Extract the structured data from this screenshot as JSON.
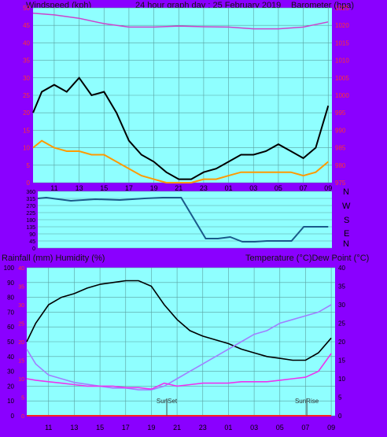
{
  "header": {
    "left": "Windspeed (kph)",
    "center": "24 hour graph day : 25 February 2019",
    "right": "Barometer (hpa)"
  },
  "dir_labels": [
    "N",
    "W",
    "S",
    "E",
    "N"
  ],
  "lower_header": {
    "left": "Rainfall (mm)  Humidity (%)",
    "right": "Temperature (°C)Dew Point (°C)"
  },
  "markers": {
    "sunset": "SunSet",
    "sunrise": "SunRise"
  },
  "colors": {
    "background": "#8a00ff",
    "plot": "#8fffff",
    "grid": "#5aa0a0",
    "wind_gust": "#000000",
    "wind_avg": "#ff9a00",
    "wind_dir": "#1a5a8a",
    "barometer": "#cc44cc",
    "temperature": "#000000",
    "dew_point": "#a080ff",
    "humidity": "#ee33ee",
    "rainfall": "#ff2222",
    "axis_red": "#ff3333",
    "axis_black": "#000000"
  },
  "chart_data": [
    {
      "type": "line",
      "name": "wind-baro",
      "x_ticks": [
        "11",
        "13",
        "15",
        "17",
        "19",
        "21",
        "23",
        "01",
        "03",
        "05",
        "07",
        "09"
      ],
      "ylim_left": [
        0,
        50
      ],
      "y_ticks_left": [
        "0",
        "5",
        "10",
        "15",
        "20",
        "25",
        "30",
        "35",
        "40",
        "45",
        "50"
      ],
      "ylim_right": [
        975,
        1025
      ],
      "y_ticks_right": [
        "975",
        "980",
        "985",
        "990",
        "995",
        "1000",
        "1005",
        "1010",
        "1015",
        "1020",
        "1025"
      ],
      "series": [
        {
          "key": "barometer",
          "axis": "right",
          "x": [
            9.3,
            11,
            13,
            15,
            17,
            19,
            21,
            23,
            1,
            3,
            5,
            7,
            9
          ],
          "values": [
            1023.5,
            1023,
            1022,
            1020.5,
            1019.5,
            1019.5,
            1019.8,
            1019.6,
            1019.5,
            1019,
            1019,
            1019.5,
            1021
          ]
        },
        {
          "key": "gust",
          "axis": "left",
          "x": [
            9.3,
            10,
            11,
            12,
            13,
            14,
            15,
            16,
            17,
            18,
            19,
            20,
            21,
            22,
            23,
            0,
            1,
            2,
            3,
            4,
            5,
            6,
            7,
            8,
            9
          ],
          "values": [
            20,
            26,
            28,
            26,
            30,
            25,
            26,
            20,
            12,
            8,
            6,
            3,
            1,
            1,
            3,
            4,
            6,
            8,
            8,
            9,
            11,
            9,
            7,
            10,
            22
          ]
        },
        {
          "key": "average",
          "axis": "left",
          "x": [
            9.3,
            10,
            11,
            12,
            13,
            14,
            15,
            16,
            17,
            18,
            19,
            20,
            21,
            22,
            23,
            0,
            1,
            2,
            3,
            4,
            5,
            6,
            7,
            8,
            9
          ],
          "values": [
            10,
            12,
            10,
            9,
            9,
            8,
            8,
            6,
            4,
            2,
            1,
            0,
            0,
            0,
            1,
            1,
            2,
            3,
            3,
            3,
            3,
            3,
            2,
            3,
            6
          ]
        }
      ]
    },
    {
      "type": "line",
      "name": "wind-direction",
      "ylim": [
        0,
        360
      ],
      "y_ticks": [
        "0",
        "45",
        "90",
        "135",
        "180",
        "225",
        "270",
        "315",
        "360"
      ],
      "series": [
        {
          "key": "direction",
          "x": [
            9.3,
            10,
            12,
            14,
            16,
            18,
            19.5,
            21,
            23,
            0,
            1,
            2,
            3,
            4,
            5,
            6,
            7,
            8,
            9
          ],
          "values": [
            315,
            320,
            300,
            310,
            305,
            315,
            320,
            320,
            60,
            60,
            70,
            40,
            40,
            45,
            45,
            45,
            135,
            135,
            135
          ]
        }
      ]
    },
    {
      "type": "line",
      "name": "temp-humidity",
      "ylim_left": [
        0,
        100
      ],
      "y_ticks_left": [
        "0",
        "10",
        "20",
        "30",
        "40",
        "50",
        "60",
        "70",
        "80",
        "90",
        "100"
      ],
      "ylim_rain": [
        0,
        40
      ],
      "y_ticks_rain": [
        "0",
        "5",
        "10",
        "15",
        "20",
        "25",
        "30",
        "35",
        "40"
      ],
      "ylim_temp": [
        0,
        40
      ],
      "y_ticks_temp": [
        "0",
        "5",
        "10",
        "15",
        "20",
        "25",
        "30",
        "35",
        "40"
      ],
      "series": [
        {
          "key": "temperature",
          "x": [
            9.3,
            10,
            11,
            12,
            13,
            14,
            15,
            16,
            17,
            18,
            19,
            20,
            21,
            22,
            23,
            0,
            1,
            2,
            3,
            4,
            5,
            6,
            7,
            8,
            9
          ],
          "values": [
            20,
            25,
            30,
            32,
            33,
            34.5,
            35.5,
            36,
            36.5,
            36.5,
            35,
            30,
            26,
            23,
            21.5,
            20.5,
            19.5,
            18,
            17,
            16,
            15.5,
            15,
            15,
            17,
            21
          ]
        },
        {
          "key": "dew_point",
          "x": [
            9.3,
            10,
            11,
            12,
            13,
            14,
            15,
            16,
            17,
            18,
            19,
            20,
            21,
            22,
            23,
            0,
            1,
            2,
            3,
            4,
            5,
            6,
            7,
            8,
            9
          ],
          "values": [
            18,
            14,
            11,
            10,
            9,
            8.5,
            8,
            7.5,
            7.5,
            7,
            7,
            8,
            10,
            12,
            14,
            16,
            18,
            20,
            22,
            23,
            25,
            26,
            27,
            28,
            30
          ]
        },
        {
          "key": "humidity",
          "x": [
            9.3,
            10,
            11,
            12,
            13,
            14,
            15,
            16,
            17,
            18,
            19,
            20,
            21,
            22,
            23,
            0,
            1,
            2,
            3,
            4,
            5,
            6,
            7,
            8,
            9
          ],
          "values": [
            25,
            24,
            23,
            22,
            21,
            20,
            20,
            20,
            19,
            19,
            18,
            22,
            20,
            21,
            22,
            22,
            22,
            23,
            23,
            23,
            24,
            25,
            26,
            30,
            42
          ]
        },
        {
          "key": "rainfall",
          "x": [
            9.3,
            9
          ],
          "values": [
            0,
            0
          ]
        }
      ]
    }
  ]
}
